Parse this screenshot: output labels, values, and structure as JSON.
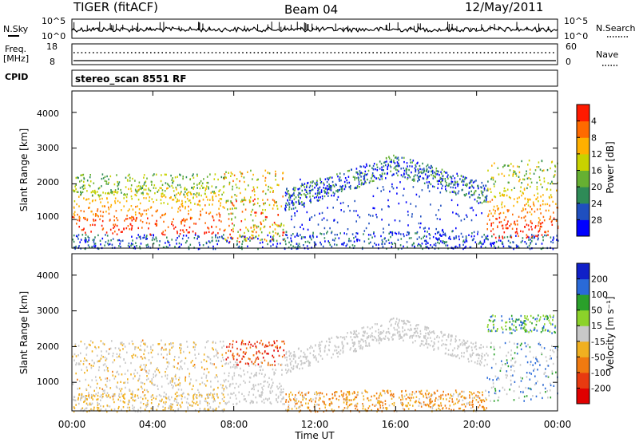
{
  "header": {
    "title_left": "TIGER (fitACF)",
    "title_center": "Beam 04",
    "title_right": "12/May/2011"
  },
  "noise_panel": {
    "left_label": "N.Sky",
    "left_ticks": [
      "10^5",
      "10^0"
    ],
    "right_ticks": [
      "10^5",
      "10^0"
    ],
    "right_label": "N.Search"
  },
  "freq_panel": {
    "label_line1": "Freq.",
    "label_line2": "[MHz]",
    "left_ticks": [
      "18",
      "8"
    ],
    "right_ticks": [
      "60",
      "0"
    ],
    "right_label": "Nave"
  },
  "cpid_panel": {
    "label": "CPID",
    "text": "stereo_scan 8551 RF"
  },
  "chart_data": [
    {
      "type": "heatmap",
      "title": "",
      "ylabel": "Slant Range [km]",
      "xlabel": "",
      "ylim": [
        200,
        4600
      ],
      "yticks": [
        "1000",
        "2000",
        "3000",
        "4000"
      ],
      "colorbar": {
        "label": "Power [dB]",
        "ticks": [
          "4",
          "8",
          "12",
          "16",
          "20",
          "24",
          "28"
        ],
        "colors": [
          "#0000ff",
          "#1f4fbf",
          "#2e8b57",
          "#66b032",
          "#c8d200",
          "#ffb000",
          "#ff6a00",
          "#ff1a00"
        ]
      }
    },
    {
      "type": "heatmap",
      "title": "",
      "ylabel": "Slant Range [km]",
      "xlabel": "Time UT",
      "ylim": [
        200,
        4600
      ],
      "yticks": [
        "1000",
        "2000",
        "3000",
        "4000"
      ],
      "xticks": [
        "00:00",
        "04:00",
        "08:00",
        "12:00",
        "16:00",
        "20:00",
        "00:00"
      ],
      "colorbar": {
        "label": "Velocity [m s⁻¹]",
        "ticks": [
          "200",
          "100",
          "50",
          "15",
          "-15",
          "-50",
          "-100",
          "-200"
        ],
        "colors": [
          "#1020c8",
          "#2a6ad8",
          "#2aa02a",
          "#8cd22a",
          "#c8c8c8",
          "#f0b020",
          "#f07a10",
          "#e83a10",
          "#e00000"
        ]
      }
    }
  ]
}
